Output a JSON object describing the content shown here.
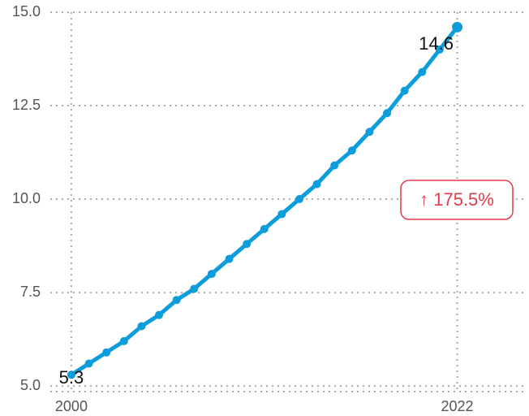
{
  "chart_data": {
    "type": "line",
    "x": [
      2000,
      2001,
      2002,
      2003,
      2004,
      2005,
      2006,
      2007,
      2008,
      2009,
      2010,
      2011,
      2012,
      2013,
      2014,
      2015,
      2016,
      2017,
      2018,
      2019,
      2020,
      2021,
      2022
    ],
    "series": [
      {
        "color": "#0d9ddb",
        "values": [
          5.3,
          5.6,
          5.9,
          6.2,
          6.6,
          6.9,
          7.3,
          7.6,
          8.0,
          8.4,
          8.8,
          9.2,
          9.6,
          10.0,
          10.4,
          10.9,
          11.3,
          11.8,
          12.3,
          12.9,
          13.4,
          14.0,
          14.6
        ]
      }
    ],
    "xlim": [
      1998.8,
      2026
    ],
    "xticks": [
      2000,
      2022
    ],
    "ylim": [
      4.85,
      15.0
    ],
    "yticks": [
      {
        "value": 5,
        "label": "5.0"
      },
      7.5,
      {
        "value": 10,
        "label": "10.0"
      },
      12.5,
      {
        "value": 15,
        "label": "15.0"
      }
    ],
    "grid": true,
    "annotation": "↑ 175.5%"
  }
}
